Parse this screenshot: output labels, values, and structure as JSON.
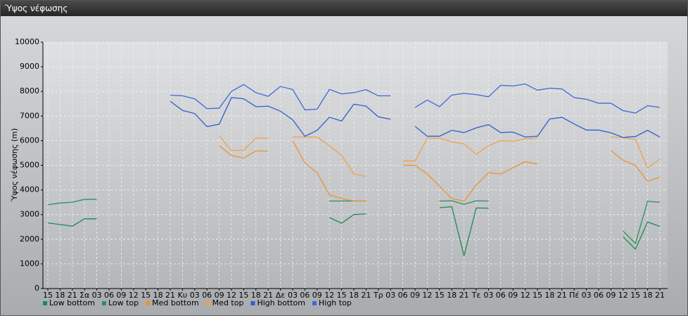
{
  "window_title": "Ύψος νέφωσης",
  "chart_data": {
    "type": "line",
    "y_label": "Ύψος νέφωσης (m)",
    "categories": [
      "15",
      "18",
      "21",
      "Σα",
      "03",
      "06",
      "09",
      "12",
      "15",
      "18",
      "21",
      "Κυ",
      "03",
      "06",
      "09",
      "12",
      "15",
      "18",
      "21",
      "Δε",
      "03",
      "06",
      "09",
      "12",
      "15",
      "18",
      "21",
      "Τρ",
      "03",
      "06",
      "09",
      "12",
      "15",
      "18",
      "21",
      "Τε",
      "03",
      "06",
      "09",
      "12",
      "15",
      "18",
      "21",
      "Πέ",
      "03",
      "06",
      "09",
      "12",
      "15",
      "18",
      "21"
    ],
    "ylim": [
      0,
      10000
    ],
    "yticks": [
      0,
      1000,
      2000,
      3000,
      4000,
      5000,
      6000,
      7000,
      8000,
      9000,
      10000
    ],
    "grid": true,
    "series": [
      {
        "name": "Low bottom",
        "color": "#1f8a50",
        "values": [
          2660,
          2600,
          2530,
          2830,
          2830,
          null,
          null,
          null,
          null,
          null,
          null,
          null,
          null,
          null,
          null,
          null,
          null,
          null,
          null,
          null,
          null,
          null,
          null,
          2880,
          2650,
          3000,
          3030,
          null,
          null,
          null,
          null,
          null,
          3280,
          3320,
          1330,
          3270,
          3260,
          null,
          null,
          null,
          null,
          null,
          null,
          null,
          null,
          null,
          null,
          2100,
          1600,
          2700,
          2520
        ]
      },
      {
        "name": "Low top",
        "color": "#2e8f5e",
        "values": [
          3400,
          3470,
          3500,
          3620,
          3620,
          null,
          null,
          null,
          null,
          null,
          null,
          null,
          null,
          null,
          null,
          null,
          null,
          null,
          null,
          null,
          null,
          null,
          null,
          3550,
          3550,
          3550,
          3550,
          null,
          null,
          null,
          null,
          null,
          3550,
          3560,
          3420,
          3560,
          3550,
          null,
          null,
          null,
          null,
          null,
          null,
          null,
          null,
          null,
          null,
          2330,
          1830,
          3540,
          3500
        ]
      },
      {
        "name": "Med bottom",
        "color": "#f0922e",
        "values": [
          null,
          null,
          null,
          null,
          null,
          null,
          null,
          null,
          null,
          null,
          null,
          null,
          null,
          null,
          5800,
          5400,
          5300,
          5580,
          5580,
          null,
          6000,
          5100,
          4700,
          3800,
          3650,
          3550,
          3550,
          null,
          null,
          5000,
          5000,
          4650,
          4150,
          3650,
          3550,
          4200,
          4700,
          4650,
          4900,
          5150,
          5050,
          null,
          null,
          null,
          null,
          null,
          5600,
          5200,
          5000,
          4350,
          4520
        ]
      },
      {
        "name": "Med top",
        "color": "#f3a04a",
        "values": [
          null,
          null,
          null,
          null,
          null,
          null,
          null,
          null,
          null,
          null,
          null,
          null,
          null,
          null,
          6200,
          5600,
          5620,
          6100,
          6100,
          null,
          6150,
          6150,
          6150,
          5800,
          5400,
          4650,
          4550,
          null,
          null,
          5180,
          5180,
          6100,
          6100,
          5950,
          5870,
          5450,
          5800,
          6000,
          5980,
          6080,
          6100,
          null,
          null,
          null,
          null,
          null,
          6150,
          6130,
          6050,
          4900,
          5250
        ]
      },
      {
        "name": "High bottom",
        "color": "#2f5fd0",
        "values": [
          null,
          null,
          null,
          null,
          null,
          null,
          null,
          null,
          null,
          null,
          7600,
          7230,
          7100,
          6570,
          6670,
          7750,
          7700,
          7380,
          7400,
          7200,
          6850,
          6180,
          6420,
          6950,
          6800,
          7480,
          7400,
          6970,
          6870,
          null,
          6580,
          6180,
          6180,
          6420,
          6330,
          6520,
          6650,
          6330,
          6350,
          6150,
          6180,
          6880,
          6950,
          6680,
          6430,
          6430,
          6320,
          6130,
          6170,
          6420,
          6150
        ]
      },
      {
        "name": "High top",
        "color": "#3d6ad8",
        "values": [
          null,
          null,
          null,
          null,
          null,
          null,
          null,
          null,
          null,
          null,
          7850,
          7820,
          7700,
          7300,
          7320,
          8000,
          8280,
          7950,
          7800,
          8200,
          8080,
          7250,
          7280,
          8080,
          7900,
          7950,
          8070,
          7820,
          7820,
          null,
          7350,
          7650,
          7380,
          7850,
          7920,
          7870,
          7780,
          8250,
          8220,
          8300,
          8050,
          8130,
          8100,
          7750,
          7680,
          7520,
          7520,
          7220,
          7120,
          7420,
          7350
        ]
      }
    ]
  }
}
